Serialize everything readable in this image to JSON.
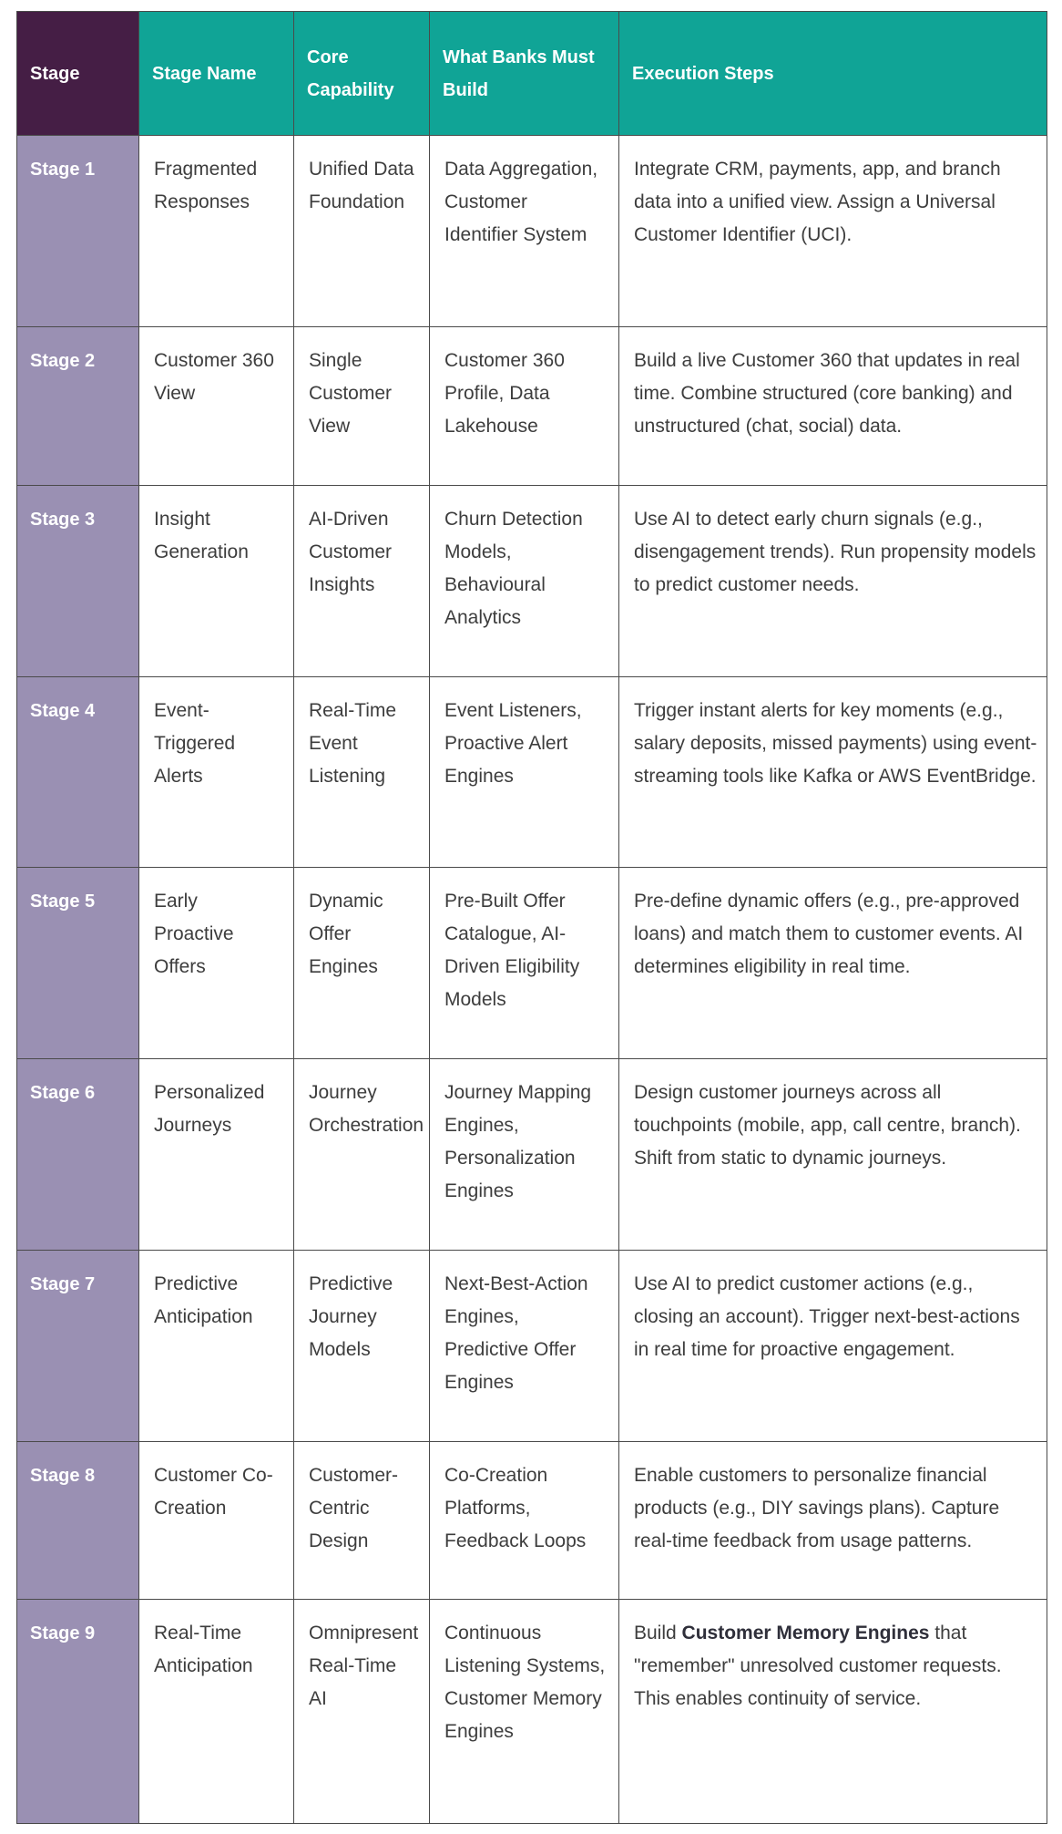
{
  "table": {
    "headers": {
      "stage": "Stage",
      "stage_name": "Stage Name",
      "core_capability": "Core Capability",
      "what_banks_must_build": "What Banks Must Build",
      "execution_steps": "Execution Steps"
    },
    "rows": [
      {
        "stage": "Stage 1",
        "stage_name": "Fragmented Responses",
        "core_capability": "Unified Data Foundation",
        "what_banks_must_build": "Data Aggregation, Customer Identifier System",
        "execution_steps": "Integrate CRM, payments, app, and branch data into a unified view. Assign a Universal Customer Identifier (UCI)."
      },
      {
        "stage": "Stage 2",
        "stage_name": "Customer 360 View",
        "core_capability": "Single Customer View",
        "what_banks_must_build": "Customer 360 Profile, Data Lakehouse",
        "execution_steps": "Build a live Customer 360 that updates in real time. Combine structured (core banking) and unstructured (chat, social) data."
      },
      {
        "stage": "Stage 3",
        "stage_name": "Insight Generation",
        "core_capability": "AI-Driven Customer Insights",
        "what_banks_must_build": "Churn Detection Models, Behavioural Analytics",
        "execution_steps": "Use AI to detect early churn signals (e.g., disengagement trends). Run propensity models to predict customer needs."
      },
      {
        "stage": "Stage 4",
        "stage_name": "Event-Triggered Alerts",
        "core_capability": "Real-Time Event Listening",
        "what_banks_must_build": "Event Listeners, Proactive Alert Engines",
        "execution_steps": "Trigger instant alerts for key moments (e.g., salary deposits, missed payments) using event-streaming tools like Kafka or AWS EventBridge."
      },
      {
        "stage": "Stage 5",
        "stage_name": "Early Proactive Offers",
        "core_capability": "Dynamic Offer Engines",
        "what_banks_must_build": "Pre-Built Offer Catalogue, AI-Driven Eligibility Models",
        "execution_steps": "Pre-define dynamic offers (e.g., pre-approved loans) and match them to customer events. AI determines eligibility in real time."
      },
      {
        "stage": "Stage 6",
        "stage_name": "Personalized Journeys",
        "core_capability": "Journey Orchestration",
        "what_banks_must_build": "Journey Mapping Engines, Personalization Engines",
        "execution_steps": "Design customer journeys across all touchpoints (mobile, app, call centre, branch). Shift from static to dynamic journeys."
      },
      {
        "stage": "Stage 7",
        "stage_name": "Predictive Anticipation",
        "core_capability": "Predictive Journey Models",
        "what_banks_must_build": "Next-Best-Action Engines, Predictive Offer Engines",
        "execution_steps": "Use AI to predict customer actions (e.g., closing an account). Trigger next-best-actions in real time for proactive engagement."
      },
      {
        "stage": "Stage 8",
        "stage_name": "Customer Co-Creation",
        "core_capability": "Customer-Centric Design",
        "what_banks_must_build": "Co-Creation Platforms, Feedback Loops",
        "execution_steps": "Enable customers to personalize financial products (e.g., DIY savings plans). Capture real-time feedback from usage patterns."
      },
      {
        "stage": "Stage 9",
        "stage_name": "Real-Time Anticipation",
        "core_capability": "Omnipresent Real-Time AI",
        "what_banks_must_build": "Continuous Listening Systems, Customer Memory Engines",
        "execution_steps_prefix": "Build ",
        "execution_steps_emphasis": "Customer Memory Engines",
        "execution_steps_suffix": " that \"remember\" unresolved customer requests. This enables continuity of service."
      }
    ]
  },
  "colors": {
    "header_teal": "#10a496",
    "header_stage_purple": "#451e45",
    "stage_cell_lavender": "#9a90b3",
    "border": "#4a4a4a",
    "text": "#3d3d3d"
  }
}
